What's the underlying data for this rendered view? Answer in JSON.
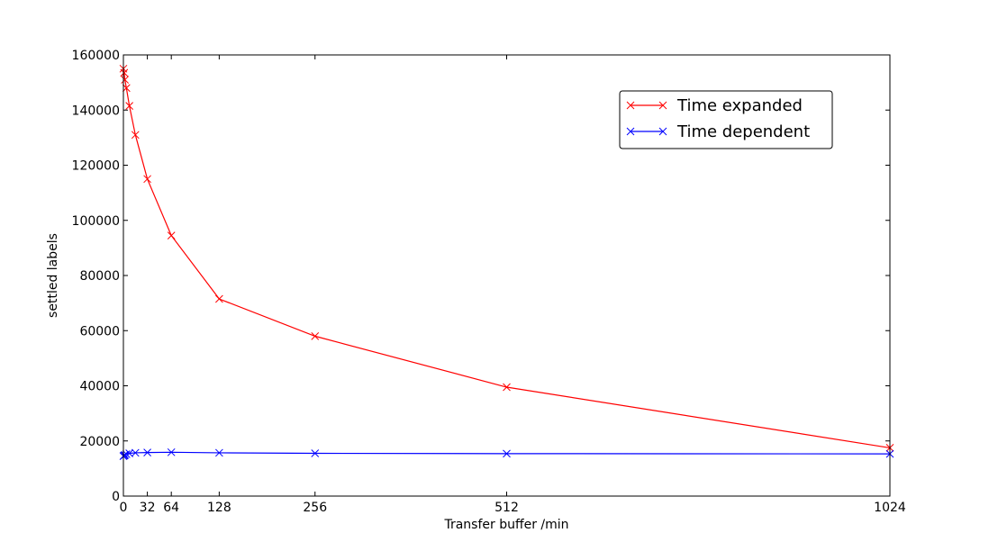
{
  "chart_data": {
    "type": "line",
    "title": "",
    "xlabel": "Transfer buffer /min",
    "ylabel": "settled labels",
    "xlim": [
      0,
      1024
    ],
    "ylim": [
      0,
      160000
    ],
    "x_ticks": [
      0,
      32,
      64,
      128,
      256,
      512,
      1024
    ],
    "y_ticks": [
      0,
      20000,
      40000,
      60000,
      80000,
      100000,
      120000,
      140000,
      160000
    ],
    "grid": false,
    "legend_position": "top-right",
    "series": [
      {
        "name": "Time expanded",
        "color": "#ff0000",
        "marker": "x",
        "x": [
          0,
          1,
          2,
          4,
          8,
          16,
          32,
          64,
          128,
          256,
          512,
          1024
        ],
        "y": [
          155000,
          153500,
          151000,
          148000,
          141500,
          131000,
          115000,
          94500,
          71500,
          58000,
          39500,
          17500
        ]
      },
      {
        "name": "Time dependent",
        "color": "#0000ff",
        "marker": "x",
        "x": [
          0,
          1,
          2,
          4,
          8,
          16,
          32,
          64,
          128,
          256,
          512,
          1024
        ],
        "y": [
          14500,
          14700,
          14900,
          15200,
          15500,
          15700,
          15800,
          15900,
          15700,
          15500,
          15400,
          15300
        ]
      }
    ]
  }
}
